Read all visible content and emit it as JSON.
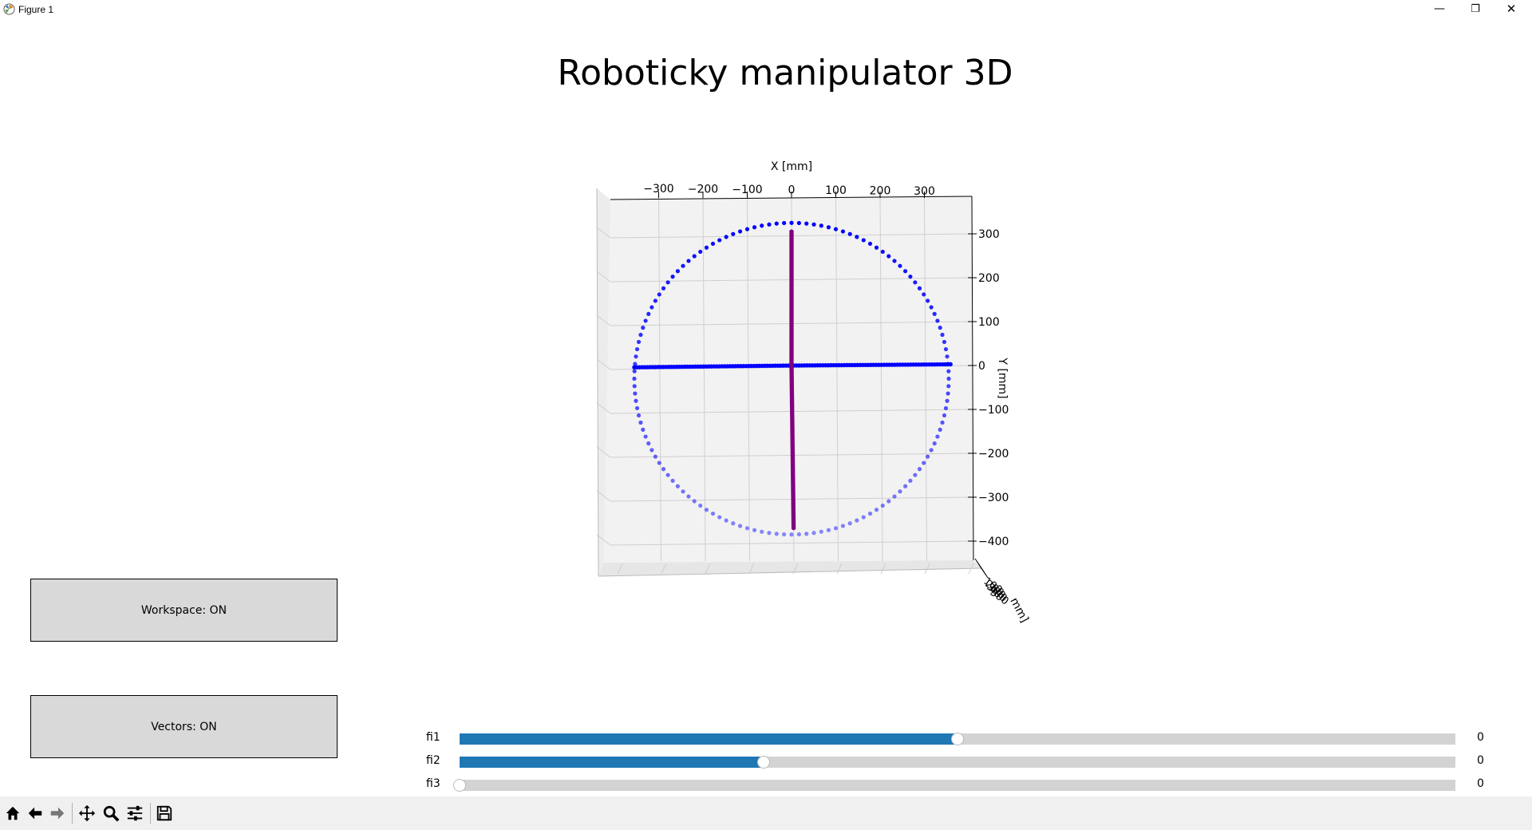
{
  "window": {
    "title": "Figure 1",
    "minimize_glyph": "—",
    "maximize_glyph": "❐",
    "close_glyph": "✕"
  },
  "figure": {
    "title": "Roboticky manipulator 3D"
  },
  "axes": {
    "xlabel": "X [mm]",
    "ylabel": "Y [mm]",
    "zlabel_fragment": "mm]",
    "x_ticks": [
      -300,
      -200,
      -100,
      0,
      100,
      200,
      300
    ],
    "y_ticks": [
      300,
      200,
      100,
      0,
      -100,
      -200,
      -300,
      -400
    ],
    "z_tick_labels": [
      "100",
      "200",
      "300",
      "400",
      "500"
    ],
    "colors": {
      "pane": "#f2f2f2",
      "grid": "#cfcfcf",
      "workspace": "#0000ff",
      "vectors": "#800080"
    }
  },
  "chart_data": {
    "type": "scatter",
    "title": "Roboticky manipulator 3D",
    "xlabel": "X [mm]",
    "ylabel": "Y [mm]",
    "xlim": [
      -355,
      360
    ],
    "ylim": [
      -420,
      330
    ],
    "series": [
      {
        "color": "#0000ff",
        "shape": "circle",
        "center": [
          0,
          -30
        ],
        "radius": 355,
        "points": 132
      },
      {
        "color": "#0000ff",
        "shape": "horizontal_line",
        "y": 0,
        "x_range": [
          -355,
          360
        ]
      },
      {
        "color": "#800080",
        "shape": "vertical_line",
        "x": 0,
        "y_range": [
          -370,
          305
        ]
      }
    ]
  },
  "buttons": {
    "workspace": "Workspace: ON",
    "vectors": "Vectors: ON"
  },
  "sliders": [
    {
      "label": "fi1",
      "value_text": "0",
      "fraction": 0.5
    },
    {
      "label": "fi2",
      "value_text": "0",
      "fraction": 0.305
    },
    {
      "label": "fi3",
      "value_text": "0",
      "fraction": 0.0
    }
  ],
  "toolbar": {
    "tools": [
      "home-icon",
      "back-icon",
      "forward-icon",
      "pan-icon",
      "zoom-icon",
      "configure-subplots-icon",
      "save-icon"
    ]
  }
}
